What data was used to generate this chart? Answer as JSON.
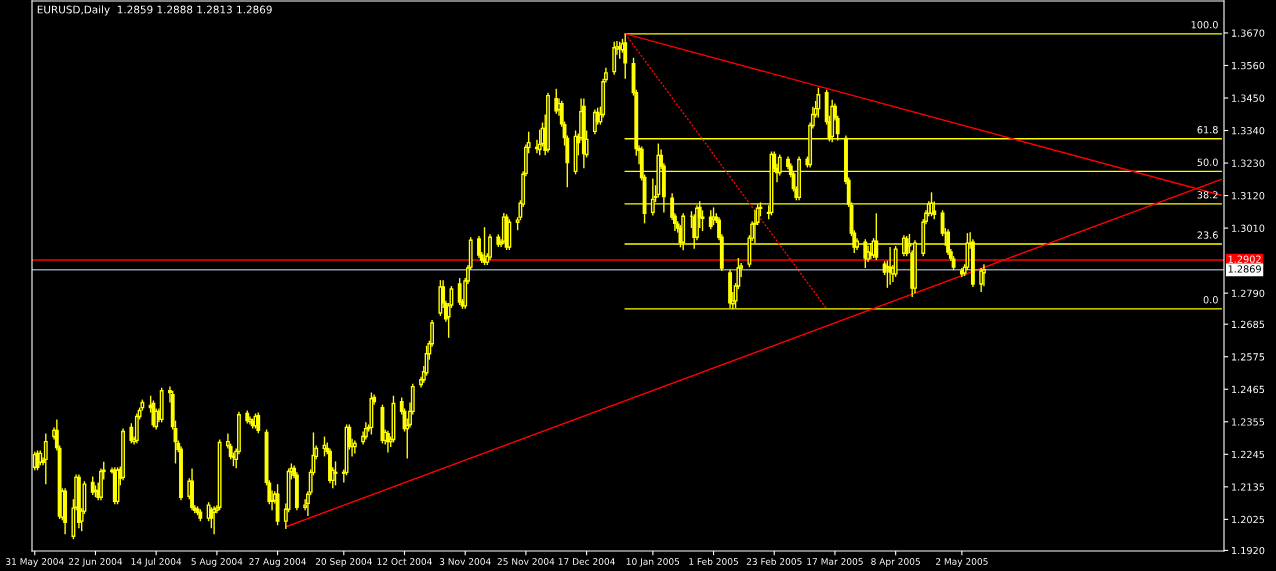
{
  "chart_data": {
    "type": "candlestick",
    "title": "EURUSD,Daily  1.2859 1.2888 1.2813 1.2869",
    "color": "#ffff00",
    "x": [
      "2004-05-31",
      "2004-06-01",
      "2004-06-02",
      "2004-06-03",
      "2004-06-04",
      "2004-06-07",
      "2004-06-08",
      "2004-06-09",
      "2004-06-10",
      "2004-06-11",
      "2004-06-14",
      "2004-06-15",
      "2004-06-16",
      "2004-06-17",
      "2004-06-18",
      "2004-06-21",
      "2004-06-22",
      "2004-06-23",
      "2004-06-24",
      "2004-06-25",
      "2004-06-28",
      "2004-06-29",
      "2004-06-30",
      "2004-07-01",
      "2004-07-02",
      "2004-07-05",
      "2004-07-06",
      "2004-07-07",
      "2004-07-08",
      "2004-07-09",
      "2004-07-12",
      "2004-07-13",
      "2004-07-14",
      "2004-07-15",
      "2004-07-16",
      "2004-07-19",
      "2004-07-20",
      "2004-07-21",
      "2004-07-22",
      "2004-07-23",
      "2004-07-26",
      "2004-07-27",
      "2004-07-28",
      "2004-07-29",
      "2004-07-30",
      "2004-08-02",
      "2004-08-03",
      "2004-08-04",
      "2004-08-05",
      "2004-08-06",
      "2004-08-09",
      "2004-08-10",
      "2004-08-11",
      "2004-08-12",
      "2004-08-13",
      "2004-08-16",
      "2004-08-17",
      "2004-08-18",
      "2004-08-19",
      "2004-08-20",
      "2004-08-23",
      "2004-08-24",
      "2004-08-25",
      "2004-08-26",
      "2004-08-27",
      "2004-08-30",
      "2004-08-31",
      "2004-09-01",
      "2004-09-02",
      "2004-09-03",
      "2004-09-06",
      "2004-09-07",
      "2004-09-08",
      "2004-09-09",
      "2004-09-10",
      "2004-09-13",
      "2004-09-14",
      "2004-09-15",
      "2004-09-16",
      "2004-09-17",
      "2004-09-20",
      "2004-09-21",
      "2004-09-22",
      "2004-09-23",
      "2004-09-24",
      "2004-09-27",
      "2004-09-28",
      "2004-09-29",
      "2004-09-30",
      "2004-10-01",
      "2004-10-04",
      "2004-10-05",
      "2004-10-06",
      "2004-10-07",
      "2004-10-08",
      "2004-10-11",
      "2004-10-12",
      "2004-10-13",
      "2004-10-14",
      "2004-10-15",
      "2004-10-18",
      "2004-10-19",
      "2004-10-20",
      "2004-10-21",
      "2004-10-22",
      "2004-10-25",
      "2004-10-26",
      "2004-10-27",
      "2004-10-28",
      "2004-10-29",
      "2004-11-01",
      "2004-11-02",
      "2004-11-03",
      "2004-11-04",
      "2004-11-05",
      "2004-11-08",
      "2004-11-09",
      "2004-11-10",
      "2004-11-11",
      "2004-11-12",
      "2004-11-15",
      "2004-11-16",
      "2004-11-17",
      "2004-11-18",
      "2004-11-19",
      "2004-11-22",
      "2004-11-23",
      "2004-11-24",
      "2004-11-25",
      "2004-11-26",
      "2004-11-29",
      "2004-11-30",
      "2004-12-01",
      "2004-12-02",
      "2004-12-03",
      "2004-12-06",
      "2004-12-07",
      "2004-12-08",
      "2004-12-09",
      "2004-12-10",
      "2004-12-13",
      "2004-12-14",
      "2004-12-15",
      "2004-12-16",
      "2004-12-17",
      "2004-12-20",
      "2004-12-21",
      "2004-12-22",
      "2004-12-23",
      "2004-12-24",
      "2004-12-27",
      "2004-12-28",
      "2004-12-29",
      "2004-12-30",
      "2004-12-31",
      "2005-01-03",
      "2005-01-04",
      "2005-01-05",
      "2005-01-06",
      "2005-01-07",
      "2005-01-10",
      "2005-01-11",
      "2005-01-12",
      "2005-01-13",
      "2005-01-14",
      "2005-01-17",
      "2005-01-18",
      "2005-01-19",
      "2005-01-20",
      "2005-01-21",
      "2005-01-24",
      "2005-01-25",
      "2005-01-26",
      "2005-01-27",
      "2005-01-28",
      "2005-01-31",
      "2005-02-01",
      "2005-02-02",
      "2005-02-03",
      "2005-02-04",
      "2005-02-07",
      "2005-02-08",
      "2005-02-09",
      "2005-02-10",
      "2005-02-11",
      "2005-02-14",
      "2005-02-15",
      "2005-02-16",
      "2005-02-17",
      "2005-02-18",
      "2005-02-21",
      "2005-02-22",
      "2005-02-23",
      "2005-02-24",
      "2005-02-25",
      "2005-02-28",
      "2005-03-01",
      "2005-03-02",
      "2005-03-03",
      "2005-03-04",
      "2005-03-07",
      "2005-03-08",
      "2005-03-09",
      "2005-03-10",
      "2005-03-11",
      "2005-03-14",
      "2005-03-15",
      "2005-03-16",
      "2005-03-17",
      "2005-03-18",
      "2005-03-21",
      "2005-03-22",
      "2005-03-23",
      "2005-03-24",
      "2005-03-25",
      "2005-03-28",
      "2005-03-29",
      "2005-03-30",
      "2005-03-31",
      "2005-04-01",
      "2005-04-04",
      "2005-04-05",
      "2005-04-06",
      "2005-04-07",
      "2005-04-08",
      "2005-04-11",
      "2005-04-12",
      "2005-04-13",
      "2005-04-14",
      "2005-04-15",
      "2005-04-18",
      "2005-04-19",
      "2005-04-20",
      "2005-04-21",
      "2005-04-22",
      "2005-04-25",
      "2005-04-26",
      "2005-04-27",
      "2005-04-28",
      "2005-04-29",
      "2005-05-02",
      "2005-05-03",
      "2005-05-04",
      "2005-05-05",
      "2005-05-06",
      "2005-05-09",
      "2005-05-10"
    ],
    "ohlc": [
      [
        1.2201,
        1.2254,
        1.2191,
        1.2244
      ],
      [
        1.2248,
        1.2258,
        1.2191,
        1.2201
      ],
      [
        1.2218,
        1.2258,
        1.2208,
        1.2248
      ],
      [
        1.2224,
        1.2234,
        1.2208,
        1.2218
      ],
      [
        1.2228,
        1.2315,
        1.2144,
        1.2288
      ],
      [
        1.2305,
        1.2336,
        1.2295,
        1.2326
      ],
      [
        1.2326,
        1.2363,
        1.2258,
        1.2268
      ],
      [
        1.2265,
        1.2275,
        1.2026,
        1.2036
      ],
      [
        1.2032,
        1.213,
        1.2022,
        1.212
      ],
      [
        1.212,
        1.213,
        1.1975,
        1.2015
      ],
      [
        1.1968,
        1.2093,
        1.1958,
        1.2063
      ],
      [
        1.2066,
        1.2177,
        1.2056,
        1.2167
      ],
      [
        1.2167,
        1.2177,
        1.1995,
        1.2015
      ],
      [
        1.2019,
        1.2063,
        1.1985,
        1.2053
      ],
      [
        1.2053,
        1.2154,
        1.2043,
        1.2144
      ],
      [
        1.215,
        1.217,
        1.2107,
        1.2117
      ],
      [
        1.212,
        1.214,
        1.21,
        1.2123
      ],
      [
        1.2123,
        1.215,
        1.209,
        1.21
      ],
      [
        1.21,
        1.2197,
        1.209,
        1.2187
      ],
      [
        1.2187,
        1.222,
        1.216,
        1.2191
      ],
      [
        1.2191,
        1.22,
        1.218,
        1.2187
      ],
      [
        1.2191,
        1.2201,
        1.2076,
        1.2086
      ],
      [
        1.2086,
        1.2201,
        1.2076,
        1.2191
      ],
      [
        1.2194,
        1.2204,
        1.214,
        1.2164
      ],
      [
        1.2167,
        1.2332,
        1.2157,
        1.2322
      ],
      [
        1.2336,
        1.235,
        1.2282,
        1.2292
      ],
      [
        1.2288,
        1.2305,
        1.2278,
        1.2295
      ],
      [
        1.2292,
        1.2383,
        1.2282,
        1.2373
      ],
      [
        1.2373,
        1.2403,
        1.2363,
        1.2393
      ],
      [
        1.2403,
        1.243,
        1.2393,
        1.242
      ],
      [
        1.241,
        1.2443,
        1.2386,
        1.2403
      ],
      [
        1.2417,
        1.2427,
        1.2336,
        1.2346
      ],
      [
        1.2339,
        1.24,
        1.2329,
        1.239
      ],
      [
        1.239,
        1.24,
        1.2353,
        1.2363
      ],
      [
        1.2363,
        1.247,
        1.2353,
        1.246
      ],
      [
        1.246,
        1.2474,
        1.242,
        1.2454
      ],
      [
        1.2447,
        1.246,
        1.2329,
        1.2339
      ],
      [
        1.2332,
        1.2359,
        1.2214,
        1.2288
      ],
      [
        1.2282,
        1.2292,
        1.2252,
        1.2262
      ],
      [
        1.2262,
        1.2272,
        1.209,
        1.21
      ],
      [
        1.2103,
        1.2164,
        1.2093,
        1.2154
      ],
      [
        1.2154,
        1.2197,
        1.2056,
        1.2066
      ],
      [
        1.2063,
        1.2073,
        1.2046,
        1.2056
      ],
      [
        1.2059,
        1.2069,
        1.2039,
        1.2049
      ],
      [
        1.2049,
        1.2059,
        1.2019,
        1.2029
      ],
      [
        1.2029,
        1.2083,
        1.2019,
        1.2073
      ],
      [
        1.2056,
        1.2066,
        1.1995,
        1.2029
      ],
      [
        1.2049,
        1.2069,
        1.1975,
        1.2059
      ],
      [
        1.2056,
        1.2073,
        1.2046,
        1.2063
      ],
      [
        1.2066,
        1.2295,
        1.2056,
        1.2285
      ],
      [
        1.2275,
        1.2315,
        1.2265,
        1.2288
      ],
      [
        1.2271,
        1.2281,
        1.2228,
        1.2238
      ],
      [
        1.2238,
        1.2251,
        1.2205,
        1.2235
      ],
      [
        1.2228,
        1.2265,
        1.2198,
        1.2255
      ],
      [
        1.2255,
        1.2389,
        1.2245,
        1.2379
      ],
      [
        1.2383,
        1.2393,
        1.2349,
        1.2359
      ],
      [
        1.2356,
        1.2373,
        1.2346,
        1.2363
      ],
      [
        1.2356,
        1.2366,
        1.2332,
        1.2342
      ],
      [
        1.2342,
        1.2383,
        1.2332,
        1.2373
      ],
      [
        1.2376,
        1.2386,
        1.2316,
        1.2326
      ],
      [
        1.2319,
        1.2329,
        1.214,
        1.215
      ],
      [
        1.2147,
        1.2157,
        1.2076,
        1.2086
      ],
      [
        1.2089,
        1.2123,
        1.2056,
        1.2086
      ],
      [
        1.2089,
        1.212,
        1.2079,
        1.211
      ],
      [
        1.211,
        1.2144,
        1.2005,
        1.2019
      ],
      [
        1.2019,
        1.2079,
        1.1992,
        1.2059
      ],
      [
        1.2059,
        1.2197,
        1.2049,
        1.2187
      ],
      [
        1.2187,
        1.2214,
        1.216,
        1.2197
      ],
      [
        1.2197,
        1.2207,
        1.2164,
        1.2174
      ],
      [
        1.2174,
        1.2184,
        1.2056,
        1.2066
      ],
      [
        1.2066,
        1.2093,
        1.2056,
        1.2073
      ],
      [
        1.2079,
        1.212,
        1.2036,
        1.211
      ],
      [
        1.2117,
        1.2194,
        1.2107,
        1.2184
      ],
      [
        1.2184,
        1.2319,
        1.2174,
        1.2241
      ],
      [
        1.2238,
        1.2275,
        1.2228,
        1.2265
      ],
      [
        1.2265,
        1.2305,
        1.2238,
        1.2275
      ],
      [
        1.2265,
        1.2285,
        1.2245,
        1.2255
      ],
      [
        1.2255,
        1.2265,
        1.2147,
        1.2157
      ],
      [
        1.2157,
        1.2201,
        1.213,
        1.2191
      ],
      [
        1.2184,
        1.2221,
        1.214,
        1.2181
      ],
      [
        1.2181,
        1.2194,
        1.215,
        1.2184
      ],
      [
        1.2184,
        1.2346,
        1.2174,
        1.2336
      ],
      [
        1.2336,
        1.2346,
        1.2261,
        1.2271
      ],
      [
        1.2271,
        1.2298,
        1.2238,
        1.2271
      ],
      [
        1.2271,
        1.2292,
        1.2248,
        1.2282
      ],
      [
        1.2288,
        1.2322,
        1.2278,
        1.2305
      ],
      [
        1.2305,
        1.2353,
        1.2295,
        1.2332
      ],
      [
        1.2332,
        1.2346,
        1.2322,
        1.2336
      ],
      [
        1.2336,
        1.2454,
        1.2312,
        1.2433
      ],
      [
        1.2437,
        1.2447,
        1.2413,
        1.2423
      ],
      [
        1.2403,
        1.2413,
        1.2282,
        1.2292
      ],
      [
        1.2292,
        1.2329,
        1.2278,
        1.2319
      ],
      [
        1.2315,
        1.2325,
        1.2251,
        1.2288
      ],
      [
        1.2288,
        1.2305,
        1.227,
        1.2295
      ],
      [
        1.2295,
        1.2443,
        1.2285,
        1.2417
      ],
      [
        1.2423,
        1.2437,
        1.238,
        1.239
      ],
      [
        1.239,
        1.24,
        1.2322,
        1.2332
      ],
      [
        1.2332,
        1.2366,
        1.2231,
        1.2342
      ],
      [
        1.2346,
        1.242,
        1.2336,
        1.239
      ],
      [
        1.239,
        1.2484,
        1.238,
        1.2474
      ],
      [
        1.2481,
        1.2507,
        1.2471,
        1.2497
      ],
      [
        1.2497,
        1.2544,
        1.2487,
        1.2524
      ],
      [
        1.2521,
        1.2612,
        1.2511,
        1.2585
      ],
      [
        1.2585,
        1.2629,
        1.2565,
        1.2619
      ],
      [
        1.2619,
        1.2699,
        1.2609,
        1.2689
      ],
      [
        1.2723,
        1.2834,
        1.2713,
        1.2811
      ],
      [
        1.2811,
        1.2834,
        1.274,
        1.2757
      ],
      [
        1.2754,
        1.2764,
        1.2693,
        1.2703
      ],
      [
        1.271,
        1.2757,
        1.2639,
        1.2747
      ],
      [
        1.275,
        1.2814,
        1.274,
        1.2804
      ],
      [
        1.2821,
        1.2841,
        1.275,
        1.276
      ],
      [
        1.276,
        1.277,
        1.2737,
        1.2747
      ],
      [
        1.2747,
        1.2841,
        1.2737,
        1.2831
      ],
      [
        1.2831,
        1.2885,
        1.2821,
        1.2875
      ],
      [
        1.2878,
        1.2979,
        1.2868,
        1.2969
      ],
      [
        1.2973,
        1.2983,
        1.2909,
        1.2919
      ],
      [
        1.2919,
        1.2929,
        1.2892,
        1.2902
      ],
      [
        1.2905,
        1.3013,
        1.2885,
        1.2895
      ],
      [
        1.2895,
        1.2925,
        1.2885,
        1.2915
      ],
      [
        1.2912,
        1.2989,
        1.2902,
        1.2979
      ],
      [
        1.2979,
        1.2989,
        1.2946,
        1.2956
      ],
      [
        1.2956,
        1.2972,
        1.2946,
        1.2962
      ],
      [
        1.2966,
        1.3061,
        1.2956,
        1.3047
      ],
      [
        1.3047,
        1.3057,
        1.2936,
        1.2946
      ],
      [
        1.2946,
        1.304,
        1.2936,
        1.303
      ],
      [
        1.303,
        1.3047,
        1.3003,
        1.3037
      ],
      [
        1.3047,
        1.3104,
        1.3037,
        1.3094
      ],
      [
        1.3091,
        1.3202,
        1.3081,
        1.3192
      ],
      [
        1.3195,
        1.3293,
        1.3185,
        1.3283
      ],
      [
        1.3283,
        1.3336,
        1.3263,
        1.3299
      ],
      [
        1.3283,
        1.3309,
        1.3263,
        1.3279
      ],
      [
        1.3276,
        1.3343,
        1.3256,
        1.3293
      ],
      [
        1.3296,
        1.3367,
        1.3286,
        1.3347
      ],
      [
        1.3347,
        1.3394,
        1.3256,
        1.3273
      ],
      [
        1.3276,
        1.3468,
        1.3266,
        1.3458
      ],
      [
        1.3448,
        1.3481,
        1.3397,
        1.3407
      ],
      [
        1.3411,
        1.3448,
        1.339,
        1.3431
      ],
      [
        1.3431,
        1.3441,
        1.3353,
        1.3363
      ],
      [
        1.336,
        1.337,
        1.3289,
        1.3316
      ],
      [
        1.3313,
        1.3323,
        1.3148,
        1.3232
      ],
      [
        1.3202,
        1.334,
        1.3192,
        1.332
      ],
      [
        1.332,
        1.333,
        1.3256,
        1.3299
      ],
      [
        1.3316,
        1.3448,
        1.3306,
        1.3404
      ],
      [
        1.3421,
        1.3448,
        1.3212,
        1.3262
      ],
      [
        1.3259,
        1.334,
        1.3249,
        1.331
      ],
      [
        1.3337,
        1.3411,
        1.3327,
        1.3401
      ],
      [
        1.3401,
        1.3417,
        1.336,
        1.337
      ],
      [
        1.337,
        1.3421,
        1.336,
        1.3394
      ],
      [
        1.3394,
        1.3515,
        1.3384,
        1.3505
      ],
      [
        1.3512,
        1.3552,
        1.3502,
        1.3535
      ],
      [
        1.3539,
        1.364,
        1.3529,
        1.362
      ],
      [
        1.3616,
        1.3643,
        1.3596,
        1.3623
      ],
      [
        1.3623,
        1.364,
        1.3583,
        1.3616
      ],
      [
        1.3613,
        1.365,
        1.3603,
        1.3633
      ],
      [
        1.3636,
        1.3667,
        1.3515,
        1.3569
      ],
      [
        1.3566,
        1.3586,
        1.3458,
        1.3468
      ],
      [
        1.3468,
        1.3478,
        1.3255,
        1.3279
      ],
      [
        1.3279,
        1.329,
        1.3226,
        1.3273
      ],
      [
        1.3276,
        1.3286,
        1.3171,
        1.3181
      ],
      [
        1.3181,
        1.3191,
        1.3026,
        1.306
      ],
      [
        1.3063,
        1.3178,
        1.3053,
        1.3107
      ],
      [
        1.3114,
        1.3155,
        1.3098,
        1.3117
      ],
      [
        1.3124,
        1.3296,
        1.3114,
        1.3256
      ],
      [
        1.3256,
        1.3276,
        1.3209,
        1.3219
      ],
      [
        1.3219,
        1.3229,
        1.3063,
        1.3117
      ],
      [
        1.3111,
        1.3128,
        1.3037,
        1.3047
      ],
      [
        1.305,
        1.306,
        1.3,
        1.3026
      ],
      [
        1.3023,
        1.3033,
        1.2995,
        1.301
      ],
      [
        1.301,
        1.302,
        1.2945,
        1.2962
      ],
      [
        1.2962,
        1.306,
        1.2935,
        1.305
      ],
      [
        1.305,
        1.3067,
        1.301,
        1.305
      ],
      [
        1.3047,
        1.3057,
        1.294,
        1.2979
      ],
      [
        1.2979,
        1.3087,
        1.2969,
        1.3077
      ],
      [
        1.308,
        1.3101,
        1.301,
        1.3047
      ],
      [
        1.3047,
        1.307,
        1.3,
        1.3043
      ],
      [
        1.3047,
        1.307,
        1.3006,
        1.3016
      ],
      [
        1.304,
        1.308,
        1.302,
        1.3047
      ],
      [
        1.3047,
        1.306,
        1.3027,
        1.3037
      ],
      [
        1.3037,
        1.3047,
        1.2969,
        1.2979
      ],
      [
        1.2979,
        1.2989,
        1.2865,
        1.2875
      ],
      [
        1.2858,
        1.2868,
        1.274,
        1.2757
      ],
      [
        1.2754,
        1.2794,
        1.2737,
        1.2764
      ],
      [
        1.2764,
        1.2824,
        1.274,
        1.2814
      ],
      [
        1.2814,
        1.2909,
        1.2804,
        1.2875
      ],
      [
        1.2875,
        1.2892,
        1.2845,
        1.2882
      ],
      [
        1.2888,
        1.2986,
        1.2878,
        1.2976
      ],
      [
        1.2976,
        1.3033,
        1.2966,
        1.3023
      ],
      [
        1.3023,
        1.307,
        1.2959,
        1.3026
      ],
      [
        1.303,
        1.3091,
        1.302,
        1.3077
      ],
      [
        1.3077,
        1.3097,
        1.305,
        1.308
      ],
      [
        1.3063,
        1.3087,
        1.304,
        1.306
      ],
      [
        1.3063,
        1.3269,
        1.3053,
        1.3259
      ],
      [
        1.3259,
        1.3269,
        1.3202,
        1.3212
      ],
      [
        1.3212,
        1.3228,
        1.3165,
        1.3198
      ],
      [
        1.3198,
        1.3259,
        1.3188,
        1.3249
      ],
      [
        1.3242,
        1.3252,
        1.3209,
        1.3219
      ],
      [
        1.3219,
        1.3229,
        1.3182,
        1.3192
      ],
      [
        1.3192,
        1.3202,
        1.3134,
        1.3144
      ],
      [
        1.3141,
        1.3151,
        1.3104,
        1.3114
      ],
      [
        1.3114,
        1.3252,
        1.3104,
        1.3242
      ],
      [
        1.3242,
        1.3252,
        1.3215,
        1.3225
      ],
      [
        1.3225,
        1.3367,
        1.3215,
        1.3357
      ],
      [
        1.3357,
        1.342,
        1.3347,
        1.3394
      ],
      [
        1.3394,
        1.344,
        1.3384,
        1.3414
      ],
      [
        1.3414,
        1.3485,
        1.3384,
        1.3461
      ],
      [
        1.3468,
        1.3478,
        1.336,
        1.337
      ],
      [
        1.337,
        1.339,
        1.3303,
        1.3313
      ],
      [
        1.332,
        1.3444,
        1.33,
        1.3421
      ],
      [
        1.3421,
        1.3431,
        1.3374,
        1.3384
      ],
      [
        1.338,
        1.339,
        1.3306,
        1.333
      ],
      [
        1.3313,
        1.3323,
        1.3158,
        1.3168
      ],
      [
        1.3171,
        1.3181,
        1.3081,
        1.3091
      ],
      [
        1.3087,
        1.3097,
        1.2983,
        1.2993
      ],
      [
        1.2993,
        1.3003,
        1.2926,
        1.2946
      ],
      [
        1.2946,
        1.2976,
        1.2936,
        1.2966
      ],
      [
        1.2962,
        1.2972,
        1.2875,
        1.2909
      ],
      [
        1.2905,
        1.295,
        1.2895,
        1.2929
      ],
      [
        1.2925,
        1.296,
        1.2905,
        1.2919
      ],
      [
        1.2919,
        1.2976,
        1.2909,
        1.2966
      ],
      [
        1.2966,
        1.306,
        1.2902,
        1.2912
      ],
      [
        1.2888,
        1.2898,
        1.2851,
        1.2861
      ],
      [
        1.288,
        1.29,
        1.2808,
        1.2878
      ],
      [
        1.2878,
        1.2946,
        1.2818,
        1.2861
      ],
      [
        1.2855,
        1.2885,
        1.2828,
        1.2875
      ],
      [
        1.2855,
        1.2949,
        1.2845,
        1.2939
      ],
      [
        1.2925,
        1.2986,
        1.2915,
        1.2976
      ],
      [
        1.2973,
        1.2983,
        1.2915,
        1.2925
      ],
      [
        1.295,
        1.299,
        1.2925,
        1.2956
      ],
      [
        1.2925,
        1.2935,
        1.2777,
        1.2807
      ],
      [
        1.2807,
        1.2969,
        1.279,
        1.2959
      ],
      [
        1.2925,
        1.304,
        1.2915,
        1.303
      ],
      [
        1.3033,
        1.307,
        1.3023,
        1.306
      ],
      [
        1.306,
        1.3101,
        1.305,
        1.3091
      ],
      [
        1.306,
        1.3131,
        1.305,
        1.3094
      ],
      [
        1.3067,
        1.31,
        1.304,
        1.3057
      ],
      [
        1.306,
        1.307,
        1.2983,
        1.2993
      ],
      [
        1.2993,
        1.301,
        1.295,
        1.2993
      ],
      [
        1.2996,
        1.3006,
        1.2919,
        1.2929
      ],
      [
        1.2929,
        1.2939,
        1.2899,
        1.2909
      ],
      [
        1.2905,
        1.2915,
        1.2868,
        1.2878
      ],
      [
        1.2865,
        1.2875,
        1.2845,
        1.2855
      ],
      [
        1.2858,
        1.2888,
        1.2848,
        1.2878
      ],
      [
        1.2878,
        1.2993,
        1.2868,
        1.2959
      ],
      [
        1.2959,
        1.2996,
        1.294,
        1.2959
      ],
      [
        1.2962,
        1.2972,
        1.2811,
        1.2821
      ],
      [
        1.2821,
        1.2875,
        1.2794,
        1.2865
      ],
      [
        1.2859,
        1.2888,
        1.2813,
        1.2869
      ]
    ],
    "series": [
      {
        "name": "100.0",
        "type": "line",
        "color": "#ffff00",
        "x": [
          "2004-12-31",
          "2005-08-04"
        ],
        "values": [
          1.3667,
          1.3667
        ]
      },
      {
        "name": "61.8",
        "type": "line",
        "color": "#ffff00",
        "x": [
          "2004-12-31",
          "2005-08-04"
        ],
        "values": [
          1.3312,
          1.3312
        ]
      },
      {
        "name": "50.0",
        "type": "line",
        "color": "#ffff00",
        "x": [
          "2004-12-31",
          "2005-08-04"
        ],
        "values": [
          1.3202,
          1.3202
        ]
      },
      {
        "name": "38.2",
        "type": "line",
        "color": "#ffff00",
        "x": [
          "2004-12-31",
          "2005-08-04"
        ],
        "values": [
          1.3092,
          1.3092
        ]
      },
      {
        "name": "23.6",
        "type": "line",
        "color": "#ffff00",
        "x": [
          "2004-12-31",
          "2005-08-04"
        ],
        "values": [
          1.2956,
          1.2956
        ]
      },
      {
        "name": "0.0",
        "type": "line",
        "color": "#ffff00",
        "x": [
          "2004-12-31",
          "2005-08-04"
        ],
        "values": [
          1.2737,
          1.2737
        ]
      },
      {
        "type": "line",
        "color": "#ff0000",
        "x": [
          "2004-12-31",
          "2005-08-04"
        ],
        "values": [
          1.3667,
          1.3121
        ]
      },
      {
        "type": "line",
        "color": "#ff0000",
        "x": [
          "2004-08-30",
          "2005-08-04"
        ],
        "values": [
          1.2,
          1.3175
        ]
      },
      {
        "type": "line",
        "color": "#ff0000",
        "line_style": "dashed",
        "x": [
          "2004-12-31",
          "2005-03-14"
        ],
        "values": [
          1.3667,
          1.2737
        ]
      }
    ],
    "ref_lines": [
      {
        "axis": "y",
        "value": 1.2902,
        "label": "1.2902",
        "color": "#ff0000"
      },
      {
        "axis": "y",
        "value": 1.2869,
        "label": "1.2869",
        "color": "#8c9aa8"
      }
    ],
    "xlim": [
      "2004-05-30",
      "2005-08-05"
    ],
    "xticks": [
      {
        "value": "2004-05-31",
        "label": "31 May 2004"
      },
      {
        "value": "2004-06-22",
        "label": "22 Jun 2004"
      },
      {
        "value": "2004-07-14",
        "label": "14 Jul 2004"
      },
      {
        "value": "2004-08-05",
        "label": "5 Aug 2004"
      },
      {
        "value": "2004-08-27",
        "label": "27 Aug 2004"
      },
      {
        "value": "2004-09-20",
        "label": "20 Sep 2004"
      },
      {
        "value": "2004-10-12",
        "label": "12 Oct 2004"
      },
      {
        "value": "2004-11-03",
        "label": "3 Nov 2004"
      },
      {
        "value": "2004-11-25",
        "label": "25 Nov 2004"
      },
      {
        "value": "2004-12-17",
        "label": "17 Dec 2004"
      },
      {
        "value": "2005-01-10",
        "label": "10 Jan 2005"
      },
      {
        "value": "2005-02-01",
        "label": "1 Feb 2005"
      },
      {
        "value": "2005-02-23",
        "label": "23 Feb 2005"
      },
      {
        "value": "2005-03-17",
        "label": "17 Mar 2005"
      },
      {
        "value": "2005-04-08",
        "label": "8 Apr 2005"
      },
      {
        "value": "2005-05-02",
        "label": "2 May 2005"
      }
    ],
    "ylim": [
      1.1918,
      1.3778
    ],
    "yticks": [
      {
        "value": 1.367,
        "label": "1.3670"
      },
      {
        "value": 1.356,
        "label": "1.3560"
      },
      {
        "value": 1.345,
        "label": "1.3450"
      },
      {
        "value": 1.334,
        "label": "1.3340"
      },
      {
        "value": 1.323,
        "label": "1.3230"
      },
      {
        "value": 1.312,
        "label": "1.3120"
      },
      {
        "value": 1.301,
        "label": "1.3010"
      },
      {
        "value": 1.279,
        "label": "1.2790"
      },
      {
        "value": 1.2685,
        "label": "1.2685"
      },
      {
        "value": 1.2575,
        "label": "1.2575"
      },
      {
        "value": 1.2465,
        "label": "1.2465"
      },
      {
        "value": 1.2355,
        "label": "1.2355"
      },
      {
        "value": 1.2245,
        "label": "1.2245"
      },
      {
        "value": 1.2135,
        "label": "1.2135"
      },
      {
        "value": 1.2025,
        "label": "1.2025"
      },
      {
        "value": 1.192,
        "label": "1.1920"
      }
    ]
  }
}
